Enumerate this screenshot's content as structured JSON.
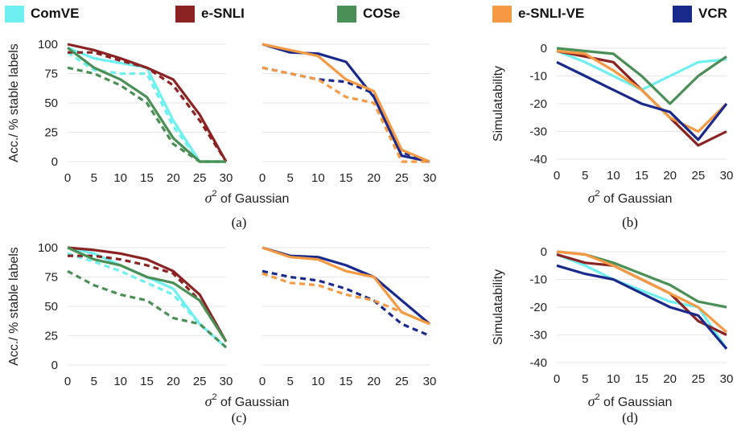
{
  "legend": [
    {
      "name": "ComVE",
      "color": "#6ff0f0"
    },
    {
      "name": "e-SNLI",
      "color": "#8b2323"
    },
    {
      "name": "COSe",
      "color": "#4a8f55"
    },
    {
      "name": "e-SNLI-VE",
      "color": "#f59a42"
    },
    {
      "name": "VCR",
      "color": "#1a2a8c"
    }
  ],
  "shared_xlabel": "of Gaussian",
  "shared_xlabel_symbol": "σ",
  "shared_xlabel_sup": "2",
  "captions": [
    "(a)",
    "(b)",
    "(c)",
    "(d)"
  ],
  "chart_data": [
    {
      "type": "line",
      "panel": "(a)-left",
      "ylabel": "Acc./ % stable labels",
      "ylim": [
        0,
        100
      ],
      "yticks": [
        0,
        25,
        50,
        75,
        100
      ],
      "x": [
        0,
        5,
        10,
        15,
        20,
        25,
        30
      ],
      "grid": true,
      "series": [
        {
          "name": "ComVE",
          "style": "solid",
          "values": [
            97,
            88,
            84,
            80,
            35,
            0,
            0
          ]
        },
        {
          "name": "ComVE",
          "style": "dashed",
          "values": [
            93,
            78,
            75,
            75,
            30,
            0,
            0
          ]
        },
        {
          "name": "e-SNLI",
          "style": "solid",
          "values": [
            100,
            95,
            88,
            80,
            70,
            40,
            0
          ]
        },
        {
          "name": "e-SNLI",
          "style": "dashed",
          "values": [
            93,
            93,
            86,
            80,
            65,
            35,
            0
          ]
        },
        {
          "name": "COSe",
          "style": "solid",
          "values": [
            97,
            80,
            70,
            55,
            20,
            0,
            0
          ]
        },
        {
          "name": "COSe",
          "style": "dashed",
          "values": [
            80,
            75,
            65,
            50,
            15,
            0,
            0
          ]
        }
      ]
    },
    {
      "type": "line",
      "panel": "(a)-right",
      "ylim": [
        0,
        100
      ],
      "yticks": [
        0,
        25,
        50,
        75,
        100
      ],
      "x": [
        0,
        5,
        10,
        15,
        20,
        25,
        30
      ],
      "grid": true,
      "series": [
        {
          "name": "VCR",
          "style": "solid",
          "values": [
            100,
            93,
            92,
            85,
            55,
            5,
            0
          ]
        },
        {
          "name": "VCR",
          "style": "dashed",
          "values": [
            80,
            75,
            70,
            68,
            58,
            8,
            0
          ]
        },
        {
          "name": "e-SNLI-VE",
          "style": "solid",
          "values": [
            100,
            95,
            90,
            70,
            60,
            10,
            0
          ]
        },
        {
          "name": "e-SNLI-VE",
          "style": "dashed",
          "values": [
            80,
            75,
            70,
            55,
            50,
            0,
            0
          ]
        }
      ]
    },
    {
      "type": "line",
      "panel": "(b)",
      "ylabel": "Simulatability",
      "ylim": [
        -40,
        0
      ],
      "yticks": [
        -40,
        -30,
        -20,
        -10,
        0
      ],
      "x": [
        0,
        5,
        10,
        15,
        20,
        25,
        30
      ],
      "grid": true,
      "series": [
        {
          "name": "ComVE",
          "style": "solid",
          "values": [
            -1,
            -5,
            -10,
            -15,
            -10,
            -5,
            -4
          ]
        },
        {
          "name": "e-SNLI",
          "style": "solid",
          "values": [
            -1,
            -3,
            -5,
            -15,
            -25,
            -35,
            -30
          ]
        },
        {
          "name": "COSe",
          "style": "solid",
          "values": [
            0,
            -1,
            -2,
            -10,
            -20,
            -10,
            -3
          ]
        },
        {
          "name": "e-SNLI-VE",
          "style": "solid",
          "values": [
            -1,
            -2,
            -8,
            -15,
            -25,
            -30,
            -20
          ]
        },
        {
          "name": "VCR",
          "style": "solid",
          "values": [
            -5,
            -10,
            -15,
            -20,
            -23,
            -33,
            -20
          ]
        }
      ]
    },
    {
      "type": "line",
      "panel": "(c)-left",
      "ylabel": "Acc./ % stable labels",
      "ylim": [
        0,
        100
      ],
      "yticks": [
        0,
        25,
        50,
        75,
        100
      ],
      "x": [
        0,
        5,
        10,
        15,
        20,
        25,
        30
      ],
      "grid": true,
      "series": [
        {
          "name": "ComVE",
          "style": "solid",
          "values": [
            100,
            95,
            85,
            75,
            65,
            35,
            15
          ]
        },
        {
          "name": "ComVE",
          "style": "dashed",
          "values": [
            95,
            88,
            80,
            70,
            60,
            35,
            15
          ]
        },
        {
          "name": "e-SNLI",
          "style": "solid",
          "values": [
            100,
            98,
            95,
            90,
            80,
            60,
            20
          ]
        },
        {
          "name": "e-SNLI",
          "style": "dashed",
          "values": [
            93,
            93,
            90,
            85,
            78,
            55,
            20
          ]
        },
        {
          "name": "COSe",
          "style": "solid",
          "values": [
            100,
            90,
            85,
            75,
            70,
            55,
            20
          ]
        },
        {
          "name": "COSe",
          "style": "dashed",
          "values": [
            80,
            68,
            60,
            55,
            40,
            35,
            15
          ]
        }
      ]
    },
    {
      "type": "line",
      "panel": "(c)-right",
      "ylim": [
        0,
        100
      ],
      "yticks": [
        0,
        25,
        50,
        75,
        100
      ],
      "x": [
        0,
        5,
        10,
        15,
        20,
        25,
        30
      ],
      "grid": true,
      "series": [
        {
          "name": "VCR",
          "style": "solid",
          "values": [
            100,
            93,
            92,
            85,
            75,
            55,
            35
          ]
        },
        {
          "name": "VCR",
          "style": "dashed",
          "values": [
            80,
            75,
            72,
            65,
            55,
            35,
            25
          ]
        },
        {
          "name": "e-SNLI-VE",
          "style": "solid",
          "values": [
            100,
            92,
            90,
            80,
            75,
            45,
            35
          ]
        },
        {
          "name": "e-SNLI-VE",
          "style": "dashed",
          "values": [
            78,
            70,
            68,
            60,
            55,
            45,
            35
          ]
        }
      ]
    },
    {
      "type": "line",
      "panel": "(d)",
      "ylabel": "Simulatability",
      "ylim": [
        -40,
        0
      ],
      "yticks": [
        -40,
        -30,
        -20,
        -10,
        0
      ],
      "x": [
        0,
        5,
        10,
        15,
        20,
        25,
        30
      ],
      "grid": true,
      "series": [
        {
          "name": "ComVE",
          "style": "solid",
          "values": [
            -1,
            -5,
            -10,
            -14,
            -18,
            -20,
            -35
          ]
        },
        {
          "name": "e-SNLI",
          "style": "solid",
          "values": [
            -1,
            -4,
            -5,
            -10,
            -15,
            -25,
            -30
          ]
        },
        {
          "name": "COSe",
          "style": "solid",
          "values": [
            0,
            -1,
            -4,
            -8,
            -12,
            -18,
            -20
          ]
        },
        {
          "name": "e-SNLI-VE",
          "style": "solid",
          "values": [
            0,
            -1,
            -5,
            -10,
            -15,
            -20,
            -29
          ]
        },
        {
          "name": "VCR",
          "style": "solid",
          "values": [
            -5,
            -8,
            -10,
            -15,
            -20,
            -23,
            -35
          ]
        }
      ]
    }
  ]
}
